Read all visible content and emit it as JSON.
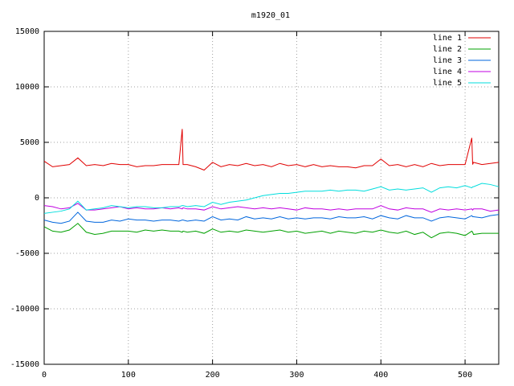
{
  "chart_data": {
    "type": "line",
    "title": "m1920_01",
    "x": [
      0,
      10,
      20,
      30,
      40,
      50,
      60,
      70,
      80,
      90,
      100,
      110,
      120,
      130,
      140,
      150,
      160,
      164,
      165,
      170,
      180,
      190,
      200,
      210,
      220,
      230,
      240,
      250,
      260,
      270,
      280,
      290,
      300,
      310,
      320,
      330,
      340,
      350,
      360,
      370,
      380,
      390,
      400,
      410,
      420,
      430,
      440,
      450,
      460,
      470,
      480,
      490,
      500,
      508,
      509,
      510,
      520,
      530,
      540
    ],
    "series": [
      {
        "name": "line 1",
        "color": "#e00000",
        "values": [
          3300,
          2800,
          2900,
          3000,
          3600,
          2900,
          3000,
          2900,
          3100,
          3000,
          3000,
          2800,
          2900,
          2900,
          3000,
          3000,
          3000,
          6200,
          3000,
          3000,
          2800,
          2500,
          3200,
          2800,
          3000,
          2900,
          3100,
          2900,
          3000,
          2800,
          3100,
          2900,
          3000,
          2800,
          3000,
          2800,
          2900,
          2800,
          2800,
          2700,
          2900,
          2900,
          3500,
          2900,
          3000,
          2800,
          3000,
          2800,
          3100,
          2900,
          3000,
          3000,
          3000,
          5400,
          3000,
          3200,
          3000,
          3100,
          3200
        ]
      },
      {
        "name": "line 2",
        "color": "#00a000",
        "values": [
          -2600,
          -3000,
          -3100,
          -2900,
          -2300,
          -3100,
          -3300,
          -3200,
          -3000,
          -3000,
          -3000,
          -3100,
          -2900,
          -3000,
          -2900,
          -3000,
          -3000,
          -3100,
          -3000,
          -3100,
          -3000,
          -3200,
          -2800,
          -3100,
          -3000,
          -3100,
          -2900,
          -3000,
          -3100,
          -3000,
          -2900,
          -3100,
          -3000,
          -3200,
          -3100,
          -3000,
          -3200,
          -3000,
          -3100,
          -3200,
          -3000,
          -3100,
          -2900,
          -3100,
          -3200,
          -3000,
          -3300,
          -3100,
          -3600,
          -3200,
          -3100,
          -3200,
          -3400,
          -3000,
          -3100,
          -3300,
          -3200,
          -3200,
          -3200
        ]
      },
      {
        "name": "line 3",
        "color": "#0066dd",
        "values": [
          -2000,
          -2200,
          -2300,
          -2100,
          -1300,
          -2100,
          -2200,
          -2200,
          -2000,
          -2100,
          -1900,
          -2000,
          -2000,
          -2100,
          -2000,
          -2000,
          -2100,
          -2000,
          -2000,
          -2100,
          -2000,
          -2100,
          -1700,
          -2000,
          -1900,
          -2000,
          -1700,
          -1900,
          -1800,
          -1900,
          -1700,
          -1900,
          -1800,
          -1900,
          -1800,
          -1800,
          -1900,
          -1700,
          -1800,
          -1800,
          -1700,
          -1900,
          -1600,
          -1800,
          -1900,
          -1600,
          -1800,
          -1800,
          -2100,
          -1800,
          -1700,
          -1800,
          -1900,
          -1600,
          -1700,
          -1700,
          -1800,
          -1600,
          -1500
        ]
      },
      {
        "name": "line 4",
        "color": "#c000e0",
        "values": [
          -700,
          -800,
          -1000,
          -900,
          -500,
          -1100,
          -1100,
          -1000,
          -900,
          -800,
          -1000,
          -900,
          -1000,
          -1000,
          -900,
          -1000,
          -900,
          -1000,
          -900,
          -1000,
          -1000,
          -1100,
          -800,
          -1000,
          -900,
          -800,
          -900,
          -1000,
          -900,
          -1000,
          -900,
          -1000,
          -1100,
          -900,
          -1000,
          -1000,
          -1100,
          -1000,
          -1100,
          -1000,
          -1000,
          -1000,
          -700,
          -1000,
          -1100,
          -900,
          -1000,
          -1000,
          -1300,
          -1000,
          -1100,
          -1000,
          -1100,
          -1000,
          -1100,
          -1000,
          -1000,
          -1200,
          -1100
        ]
      },
      {
        "name": "line 5",
        "color": "#00dddd",
        "values": [
          -1400,
          -1300,
          -1200,
          -1000,
          -300,
          -1100,
          -1000,
          -900,
          -700,
          -800,
          -900,
          -800,
          -800,
          -900,
          -900,
          -800,
          -800,
          -700,
          -700,
          -800,
          -700,
          -800,
          -400,
          -600,
          -400,
          -300,
          -200,
          0,
          200,
          300,
          400,
          400,
          500,
          600,
          600,
          600,
          700,
          600,
          700,
          700,
          600,
          800,
          1000,
          700,
          800,
          700,
          800,
          900,
          500,
          900,
          1000,
          900,
          1100,
          900,
          1000,
          1000,
          1300,
          1200,
          1000
        ]
      }
    ],
    "xlim": [
      0,
      540
    ],
    "xticks": [
      0,
      100,
      200,
      300,
      400,
      500
    ],
    "ylim": [
      -15000,
      15000
    ],
    "yticks": [
      -15000,
      -10000,
      -5000,
      0,
      5000,
      10000,
      15000
    ],
    "grid": true,
    "legend": "top-right"
  }
}
